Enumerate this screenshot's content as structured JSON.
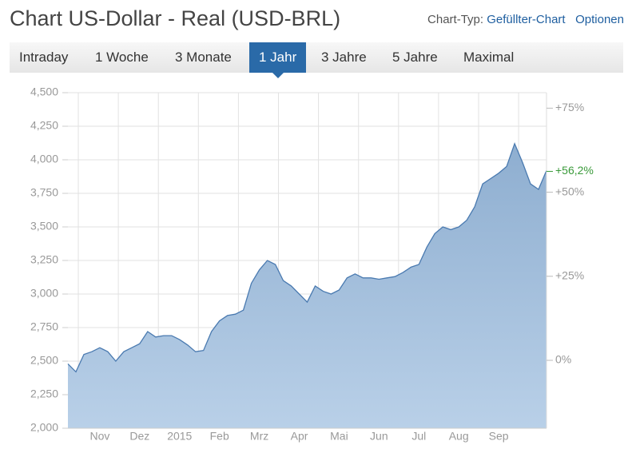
{
  "header": {
    "title": "Chart US-Dollar - Real (USD-BRL)",
    "chart_type_label": "Chart-Typ:",
    "chart_type": "Gefüllter-Chart",
    "options": "Optionen"
  },
  "tabs": {
    "items": [
      "Intraday",
      "1 Woche",
      "3 Monate",
      "1 Jahr",
      "3 Jahre",
      "5 Jahre",
      "Maximal"
    ],
    "active": 3
  },
  "chart_data": {
    "type": "area",
    "categories": [
      null,
      null,
      null,
      null,
      "Nov",
      null,
      null,
      null,
      null,
      "Dez",
      null,
      null,
      null,
      null,
      "2015",
      null,
      null,
      null,
      null,
      "Feb",
      null,
      null,
      null,
      null,
      "Mrz",
      null,
      null,
      null,
      null,
      "Apr",
      null,
      null,
      null,
      null,
      "Mai",
      null,
      null,
      null,
      null,
      "Jun",
      null,
      null,
      null,
      null,
      "Jul",
      null,
      null,
      null,
      null,
      "Aug",
      null,
      null,
      null,
      null,
      "Sep",
      null,
      null,
      null,
      null,
      null,
      null
    ],
    "values": [
      2.48,
      2.42,
      2.55,
      2.57,
      2.6,
      2.57,
      2.5,
      2.57,
      2.6,
      2.63,
      2.72,
      2.68,
      2.69,
      2.69,
      2.66,
      2.62,
      2.57,
      2.58,
      2.72,
      2.8,
      2.84,
      2.85,
      2.88,
      3.08,
      3.18,
      3.25,
      3.22,
      3.1,
      3.06,
      3.0,
      2.94,
      3.06,
      3.02,
      3.0,
      3.03,
      3.12,
      3.15,
      3.12,
      3.12,
      3.11,
      3.12,
      3.13,
      3.16,
      3.2,
      3.22,
      3.35,
      3.45,
      3.5,
      3.48,
      3.5,
      3.55,
      3.65,
      3.82,
      3.86,
      3.9,
      3.95,
      4.12,
      3.98,
      3.82,
      3.78,
      3.92
    ],
    "color": "#4a7ab0",
    "ylim": [
      2,
      4.5
    ],
    "yticks": [
      {
        "value": 2,
        "label": "2,000"
      },
      {
        "value": 2.25,
        "label": "2,250"
      },
      {
        "value": 2.5,
        "label": "2,500"
      },
      {
        "value": 2.75,
        "label": "2,750"
      },
      {
        "value": 3,
        "label": "3,000"
      },
      {
        "value": 3.25,
        "label": "3,250"
      },
      {
        "value": 3.5,
        "label": "3,500"
      },
      {
        "value": 3.75,
        "label": "3,750"
      },
      {
        "value": 4,
        "label": "4,000"
      },
      {
        "value": 4.25,
        "label": "4,250"
      },
      {
        "value": 4.5,
        "label": "4,500"
      }
    ],
    "y2lim": [
      -20.2,
      79.6
    ],
    "y2ticks": [
      {
        "value": 0,
        "label": "0%"
      },
      {
        "value": 25,
        "label": "+25%"
      },
      {
        "value": 50,
        "label": "+50%"
      },
      {
        "value": 75,
        "label": "+75%"
      }
    ],
    "change": {
      "value": 56.2,
      "label": "+56,2%"
    },
    "grid": true
  }
}
